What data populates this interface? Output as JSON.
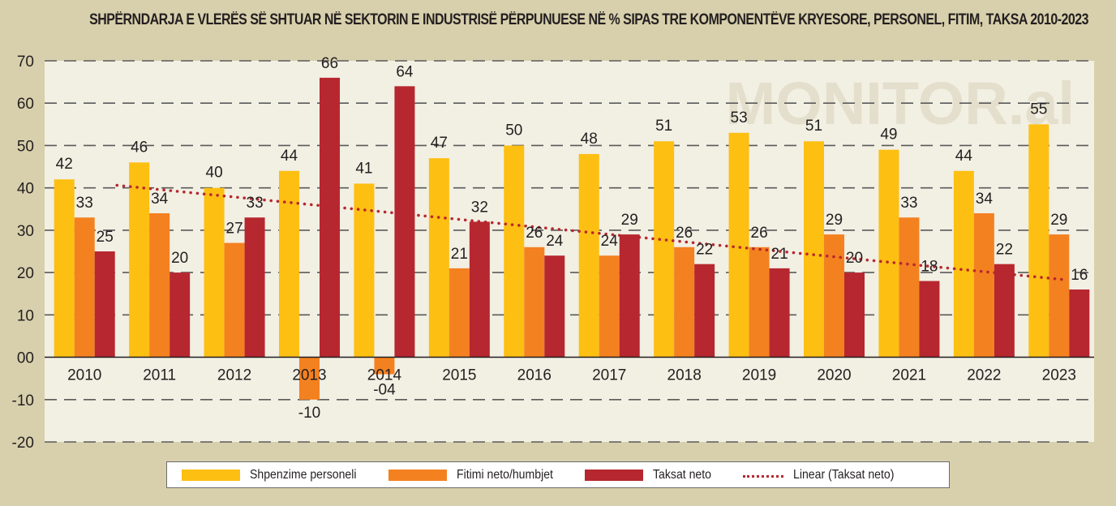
{
  "title": "SHPËRNDARJA E VLERËS SË SHTUAR NË SEKTORIN E INDUSTRISË PËRPUNUESE NË % SIPAS TRE KOMPONENTËVE KRYESORE, PERSONEL, FITIM, TAKSA 2010-2023",
  "watermark": "MONITOR.al",
  "colors": {
    "background": "#d8d0ac",
    "plot_background": "#f2efe3",
    "personel": "#fdbf12",
    "fitimi": "#f48120",
    "taksat": "#b7272f",
    "trend": "#b7272f",
    "watermark": "#e4dfcc"
  },
  "chart_data": {
    "type": "bar",
    "title": "SHPËRNDARJA E VLERËS SË SHTUAR NË SEKTORIN E INDUSTRISË PËRPUNUESE NË % SIPAS TRE KOMPONENTËVE KRYESORE, PERSONEL, FITIM, TAKSA 2010-2023",
    "xlabel": "",
    "ylabel": "",
    "ylim": [
      -20,
      70
    ],
    "yticks": [
      -20,
      -10,
      0,
      10,
      20,
      30,
      40,
      50,
      60,
      70
    ],
    "ytick_labels": [
      "-20",
      "-10",
      "00",
      "10",
      "20",
      "30",
      "40",
      "50",
      "60",
      "70"
    ],
    "grid": true,
    "legend_position": "bottom",
    "categories": [
      "2010",
      "2011",
      "2012",
      "2013",
      "2014",
      "2015",
      "2016",
      "2017",
      "2018",
      "2019",
      "2020",
      "2021",
      "2022",
      "2023"
    ],
    "series": [
      {
        "name": "Shpenzime personeli",
        "key": "personel",
        "values": [
          42,
          46,
          40,
          44,
          41,
          47,
          50,
          48,
          51,
          53,
          51,
          49,
          44,
          55
        ],
        "labels": [
          "42",
          "46",
          "40",
          "44",
          "41",
          "47",
          "50",
          "48",
          "51",
          "53",
          "51",
          "49",
          "44",
          "55"
        ]
      },
      {
        "name": "Fitimi neto/humbjet",
        "key": "fitimi",
        "values": [
          33,
          34,
          27,
          -10,
          -4,
          21,
          26,
          24,
          26,
          26,
          29,
          33,
          34,
          29
        ],
        "labels": [
          "33",
          "34",
          "27",
          "-10",
          "-04",
          "21",
          "26",
          "24",
          "26",
          "26",
          "29",
          "33",
          "34",
          "29"
        ]
      },
      {
        "name": "Taksat neto",
        "key": "taksat",
        "values": [
          25,
          20,
          33,
          66,
          64,
          32,
          24,
          29,
          22,
          21,
          20,
          18,
          22,
          16
        ],
        "labels": [
          "25",
          "20",
          "33",
          "66",
          "64",
          "32",
          "24",
          "29",
          "22",
          "21",
          "20",
          "18",
          "22",
          "16"
        ]
      }
    ],
    "trendline": {
      "name": "Linear (Taksat neto)",
      "type": "linear",
      "of": "Taksat neto",
      "start": 40.6,
      "end": 18.3
    }
  },
  "legend": [
    {
      "label": "Shpenzime personeli",
      "kind": "bar",
      "key": "personel"
    },
    {
      "label": "Fitimi neto/humbjet",
      "kind": "bar",
      "key": "fitimi"
    },
    {
      "label": "Taksat neto",
      "kind": "bar",
      "key": "taksat"
    },
    {
      "label": "Linear (Taksat neto)",
      "kind": "dotted-line",
      "key": "trend"
    }
  ]
}
